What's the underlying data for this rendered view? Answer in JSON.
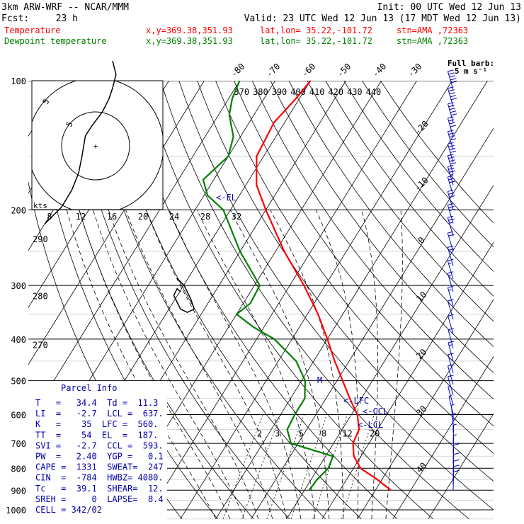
{
  "header": {
    "model": "3km ARW-WRF -- NCAR/MMM",
    "init": "Init: 00 UTC Wed 12 Jun 13",
    "fcst_label": "Fcst:",
    "fcst_value": "23 h",
    "valid": "Valid: 23 UTC Wed 12 Jun 13 (17 MDT Wed 12 Jun 13)"
  },
  "legend": [
    {
      "name": "Temperature",
      "xy": "x,y=369.38,351.93",
      "latlon": "lat,lon= 35.22,-101.72",
      "stn": "stn=AMA ,72363",
      "color": "#ff0000"
    },
    {
      "name": "Dewpoint temperature",
      "xy": "x,y=369.38,351.93",
      "latlon": "lat,lon= 35.22,-101.72",
      "stn": "stn=AMA ,72363",
      "color": "#008000"
    }
  ],
  "wind_key": {
    "title": "Full barb:",
    "unit": "5 m s⁻¹"
  },
  "hodograph": {
    "units": "kts",
    "ring_labels": [
      "5",
      "5"
    ],
    "speed_labels": [
      "8",
      "12",
      "16",
      "20",
      "24",
      "28",
      "32"
    ]
  },
  "labels": {
    "el": "<-EL",
    "lfc": "<-LFC",
    "ccl": "<-CCL",
    "lcl": "<-LCL",
    "m": "M"
  },
  "parcel_info": {
    "title": "Parcel Info",
    "rows": [
      "T   =   34.4  Td =  11.3",
      "LI  =   -2.7  LCL =  637.",
      "K   =    35  LFC =  560.",
      "TT  =    54  EL  =  187.",
      "SVI =   -2.7  CCL =  593.",
      "PW  =   2.40  YGP =   0.1",
      "CAPE =  1331  SWEAT=  247",
      "CIN  =  -784  HWBZ= 4080.",
      "Tc   =  39.1  SHEAR=  12.",
      "SREH =     0  LAPSE=  8.4",
      "CELL = 342/02"
    ]
  },
  "chart_data": {
    "type": "line",
    "title": "",
    "pressure_ticks": [
      "100",
      "200",
      "300",
      "400",
      "500",
      "600",
      "700",
      "800",
      "900",
      "1000"
    ],
    "pressure_levels": [
      100,
      200,
      300,
      400,
      500,
      600,
      700,
      800,
      900,
      1000
    ],
    "isotherm_labels": [
      "-80",
      "-70",
      "-60",
      "-50",
      "-40",
      "-30",
      "-20",
      "-10",
      "0",
      "10",
      "20",
      "30",
      "40"
    ],
    "isotherm_values": [
      -80,
      -70,
      -60,
      -50,
      -40,
      -30,
      -20,
      -10,
      0,
      10,
      20,
      30,
      40
    ],
    "theta_labels": [
      "370",
      "380",
      "390",
      "400",
      "410",
      "420",
      "430",
      "440"
    ],
    "theta_values": [
      370,
      380,
      390,
      400,
      410,
      420,
      430,
      440
    ],
    "side_theta_labels": [
      "290",
      "280",
      "270"
    ],
    "side_theta_values": [
      290,
      280,
      270
    ],
    "mixing_ratio_labels": [
      "2",
      "3",
      "5",
      "8",
      "12",
      "20"
    ],
    "mixing_ratio_values": [
      2,
      3,
      5,
      8,
      12,
      20
    ],
    "series": [
      {
        "name": "Temperature",
        "color": "#ff0000",
        "points": [
          [
            900,
            34.4
          ],
          [
            850,
            28.7
          ],
          [
            800,
            22
          ],
          [
            750,
            18
          ],
          [
            700,
            15.5
          ],
          [
            650,
            14.8
          ],
          [
            600,
            11.7
          ],
          [
            550,
            6.7
          ],
          [
            500,
            1.6
          ],
          [
            450,
            -4.1
          ],
          [
            400,
            -10
          ],
          [
            350,
            -17
          ],
          [
            300,
            -26
          ],
          [
            250,
            -37.5
          ],
          [
            200,
            -50
          ],
          [
            175,
            -57
          ],
          [
            150,
            -62
          ],
          [
            125,
            -63
          ],
          [
            110,
            -61
          ],
          [
            100,
            -60
          ]
        ]
      },
      {
        "name": "Dewpoint temperature",
        "color": "#008000",
        "points": [
          [
            900,
            11.3
          ],
          [
            850,
            11.7
          ],
          [
            800,
            12.9
          ],
          [
            750,
            12.1
          ],
          [
            700,
            -2
          ],
          [
            650,
            -5.5
          ],
          [
            600,
            -6
          ],
          [
            550,
            -6
          ],
          [
            500,
            -9
          ],
          [
            450,
            -15
          ],
          [
            400,
            -25
          ],
          [
            375,
            -33
          ],
          [
            350,
            -40
          ],
          [
            330,
            -38
          ],
          [
            300,
            -38.5
          ],
          [
            250,
            -50
          ],
          [
            200,
            -62
          ],
          [
            185,
            -69
          ],
          [
            170,
            -73
          ],
          [
            150,
            -70
          ],
          [
            135,
            -72
          ],
          [
            120,
            -77
          ],
          [
            110,
            -79
          ],
          [
            100,
            -80
          ]
        ]
      }
    ],
    "hodograph_trace": [
      [
        5,
        -25
      ],
      [
        6,
        -21
      ],
      [
        5,
        -17
      ],
      [
        4,
        -14
      ],
      [
        2,
        -10
      ],
      [
        -1,
        -6
      ],
      [
        -3,
        -3
      ],
      [
        -3.5,
        0
      ],
      [
        -4,
        3
      ],
      [
        -5,
        8
      ],
      [
        -7,
        13
      ],
      [
        -10,
        18
      ],
      [
        -13,
        21
      ],
      [
        -15,
        23
      ]
    ],
    "hodograph_loop": [
      [
        -2,
        -11
      ],
      [
        -3,
        -12
      ],
      [
        -4,
        -10
      ],
      [
        -2,
        -6
      ],
      [
        0,
        -5
      ],
      [
        2,
        -6
      ],
      [
        1,
        -9
      ],
      [
        -1,
        -13
      ],
      [
        -3,
        -15
      ]
    ],
    "hodograph_storm_motion": [
      -2,
      -4
    ],
    "wind_barbs": [
      {
        "p": 105,
        "dir": 258,
        "spd": 25
      },
      {
        "p": 115,
        "dir": 258,
        "spd": 25
      },
      {
        "p": 125,
        "dir": 255,
        "spd": 25
      },
      {
        "p": 135,
        "dir": 258,
        "spd": 22
      },
      {
        "p": 145,
        "dir": 258,
        "spd": 21
      },
      {
        "p": 155,
        "dir": 260,
        "spd": 20
      },
      {
        "p": 165,
        "dir": 260,
        "spd": 20
      },
      {
        "p": 175,
        "dir": 262,
        "spd": 18
      },
      {
        "p": 185,
        "dir": 262,
        "spd": 17
      },
      {
        "p": 200,
        "dir": 262,
        "spd": 17
      },
      {
        "p": 215,
        "dir": 262,
        "spd": 15
      },
      {
        "p": 230,
        "dir": 262,
        "spd": 14
      },
      {
        "p": 250,
        "dir": 265,
        "spd": 12
      },
      {
        "p": 270,
        "dir": 265,
        "spd": 11
      },
      {
        "p": 290,
        "dir": 265,
        "spd": 9
      },
      {
        "p": 310,
        "dir": 265,
        "spd": 8
      },
      {
        "p": 335,
        "dir": 260,
        "spd": 8
      },
      {
        "p": 360,
        "dir": 255,
        "spd": 7
      },
      {
        "p": 390,
        "dir": 250,
        "spd": 7
      },
      {
        "p": 420,
        "dir": 245,
        "spd": 7
      },
      {
        "p": 450,
        "dir": 245,
        "spd": 8
      },
      {
        "p": 480,
        "dir": 250,
        "spd": 7
      },
      {
        "p": 510,
        "dir": 255,
        "spd": 6
      },
      {
        "p": 540,
        "dir": 255,
        "spd": 5
      },
      {
        "p": 570,
        "dir": 250,
        "spd": 4
      },
      {
        "p": 600,
        "dir": 230,
        "spd": 3
      },
      {
        "p": 630,
        "dir": 200,
        "spd": 3
      },
      {
        "p": 660,
        "dir": 180,
        "spd": 3
      },
      {
        "p": 700,
        "dir": 175,
        "spd": 3
      },
      {
        "p": 740,
        "dir": 175,
        "spd": 4
      },
      {
        "p": 780,
        "dir": 175,
        "spd": 5
      },
      {
        "p": 820,
        "dir": 175,
        "spd": 6
      },
      {
        "p": 850,
        "dir": 175,
        "spd": 7
      },
      {
        "p": 875,
        "dir": 175,
        "spd": 7
      },
      {
        "p": 900,
        "dir": 175,
        "spd": 6
      }
    ]
  }
}
